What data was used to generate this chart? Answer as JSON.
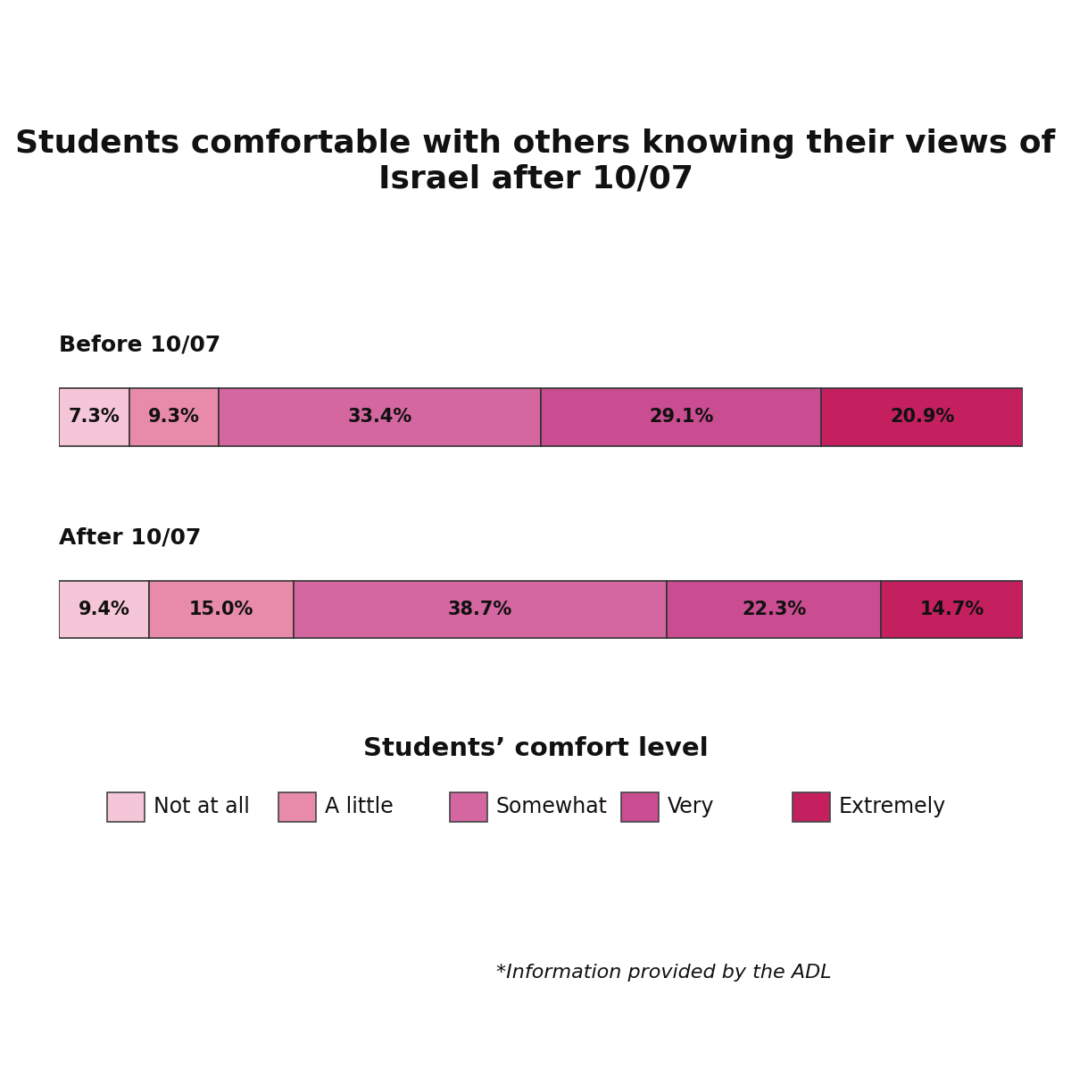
{
  "title": "Students comfortable with others knowing their views of Israel after 10/07",
  "legend_title": "Students’ comfort level",
  "footnote": "*Information provided by the ADL",
  "rows": [
    {
      "label": "Before 10/07",
      "values": [
        7.3,
        9.3,
        33.4,
        29.1,
        20.9
      ]
    },
    {
      "label": "After 10/07",
      "values": [
        9.4,
        15.0,
        38.7,
        22.3,
        14.7
      ]
    }
  ],
  "categories": [
    "Not at all",
    "A little",
    "Somewhat",
    "Very",
    "Extremely"
  ],
  "colors": [
    "#f5c6d8",
    "#e88aaa",
    "#d466a0",
    "#c94d90",
    "#c42060"
  ],
  "bar_height": 0.6,
  "text_color": "#111111",
  "background_color": "#ffffff"
}
